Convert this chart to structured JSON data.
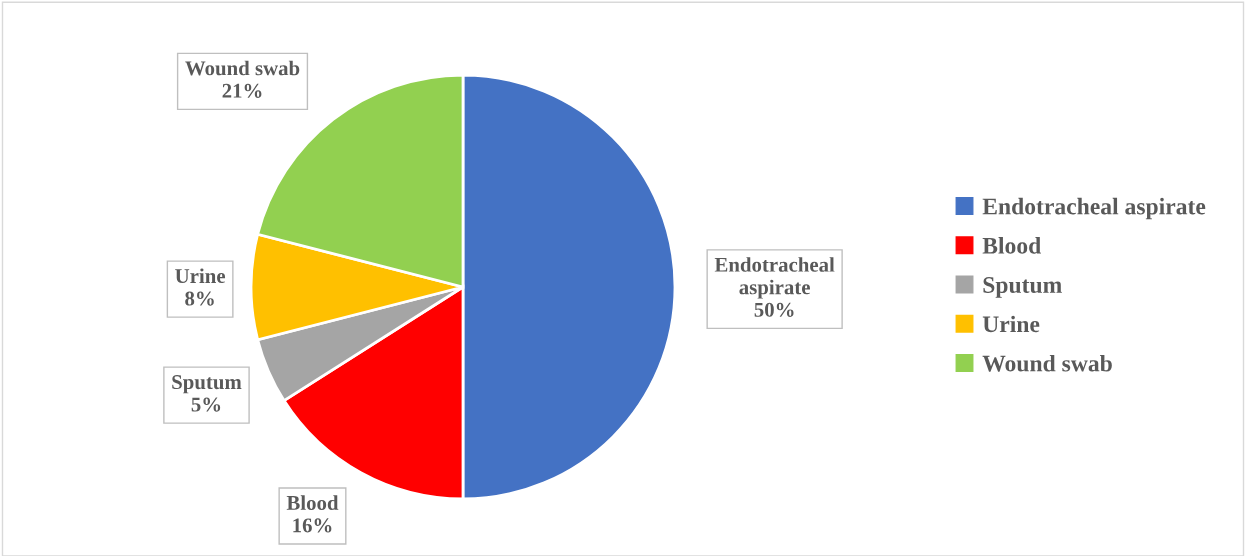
{
  "chart_data": {
    "type": "pie",
    "categories": [
      "Endotracheal aspirate",
      "Blood",
      "Sputum",
      "Urine",
      "Wound swab"
    ],
    "values": [
      50,
      16,
      5,
      8,
      21
    ],
    "colors": [
      "#4472c4",
      "#ff0000",
      "#a5a5a5",
      "#ffc000",
      "#92d050"
    ],
    "value_labels": [
      "50%",
      "16%",
      "5%",
      "8%",
      "21%"
    ],
    "legend": "right"
  }
}
